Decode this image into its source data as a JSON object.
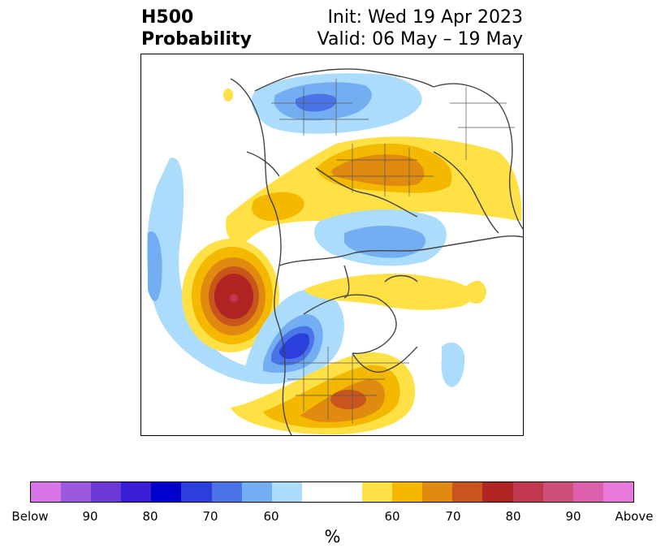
{
  "title": {
    "left_line1": "H500",
    "left_line2": "Probability",
    "right_line1": "Init: Wed 19 Apr 2023",
    "right_line2": "Valid: 06 May – 19 May"
  },
  "map": {
    "projection": "north-polar-stereographic",
    "field": "500 hPa height anomaly probability",
    "features": [
      {
        "name": "trough-west-of-north-america",
        "sign": "below",
        "peak": 70
      },
      {
        "name": "ridge-northeast-pacific",
        "sign": "above",
        "peak": 80
      },
      {
        "name": "trough-western-us",
        "sign": "below",
        "peak": 80
      },
      {
        "name": "ridge-eastern-us",
        "sign": "above",
        "peak": 75
      },
      {
        "name": "ridge-southern-atlantic-tail",
        "sign": "above",
        "peak": 70
      },
      {
        "name": "trough-east-asia",
        "sign": "below",
        "peak": 75
      },
      {
        "name": "ridge-siberia",
        "sign": "above",
        "peak": 70
      },
      {
        "name": "trough-arctic-europe",
        "sign": "below",
        "peak": 70
      },
      {
        "name": "ridge-north-atlantic",
        "sign": "above",
        "peak": 60
      },
      {
        "name": "trough-central-atlantic",
        "sign": "below",
        "peak": 60
      }
    ]
  },
  "colorbar": {
    "colors": [
      "#d674e8",
      "#9b59e0",
      "#6c3ad8",
      "#3a1ed6",
      "#0000cc",
      "#2a3fdc",
      "#4a74e8",
      "#74aef2",
      "#acdcfb",
      "#ffffff",
      "#ffffff",
      "#ffe045",
      "#f4b800",
      "#e08a10",
      "#c8561c",
      "#b02424",
      "#c0374e",
      "#cc4f7c",
      "#dc60ac",
      "#e878dc"
    ],
    "tick_labels": [
      "Below",
      "90",
      "80",
      "70",
      "60",
      "60",
      "70",
      "80",
      "90",
      "Above"
    ],
    "unit": "%"
  }
}
